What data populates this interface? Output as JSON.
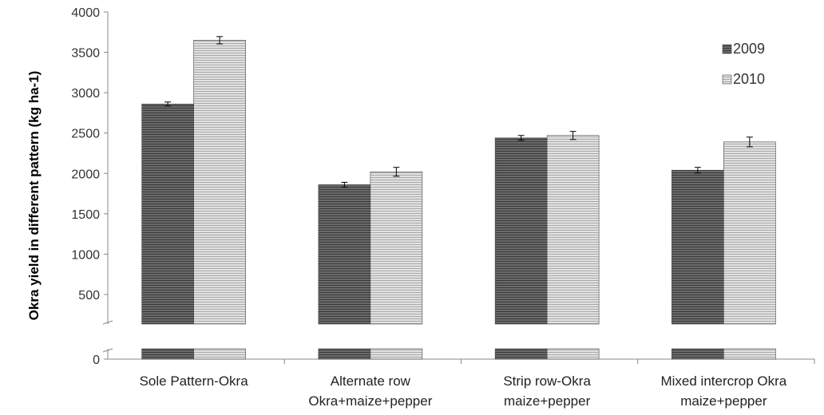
{
  "chart_data": {
    "type": "bar",
    "title": "",
    "xlabel": "",
    "ylabel": "Okra yield in different pattern (kg ha-1)",
    "ylim": [
      0,
      4000
    ],
    "y_ticks": [
      0,
      500,
      1000,
      1500,
      2000,
      2500,
      3000,
      3500,
      4000
    ],
    "axis_break": "between 0 and 500",
    "grid": false,
    "legend_position": "top-right",
    "categories": [
      [
        "Sole Pattern-Okra"
      ],
      [
        "Alternate row",
        "Okra+maize+pepper"
      ],
      [
        "Strip row-Okra",
        "maize+pepper"
      ],
      [
        "Mixed intercrop Okra",
        "maize+pepper"
      ]
    ],
    "series": [
      {
        "name": "2009",
        "values": [
          2860,
          1860,
          2440,
          2040
        ],
        "errors": [
          25,
          30,
          30,
          35
        ],
        "color": "#555555"
      },
      {
        "name": "2010",
        "values": [
          3650,
          2020,
          2470,
          2390
        ],
        "errors": [
          45,
          55,
          50,
          60
        ],
        "color": "#bbbbbb"
      }
    ]
  }
}
